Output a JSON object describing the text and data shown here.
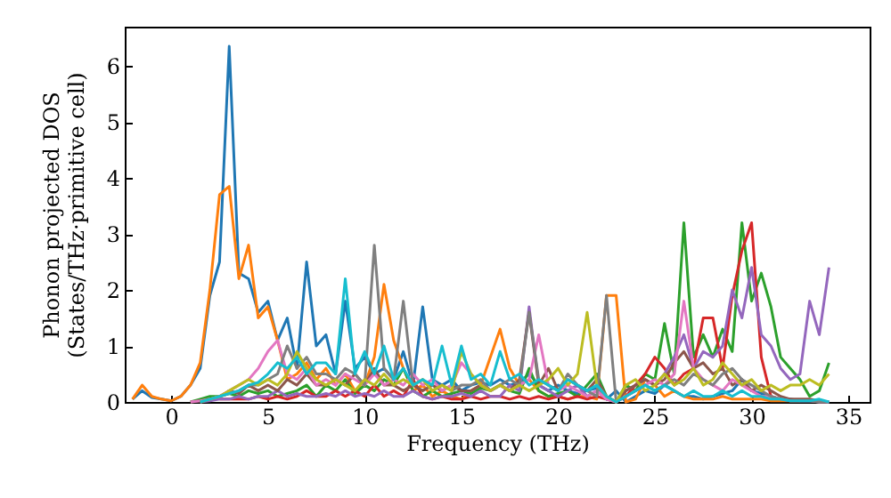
{
  "chart_data": {
    "type": "line",
    "xlabel": "Frequency (THz)",
    "ylabel": "Phonon projected DOS\n(States/THz·primitive cell)",
    "x": [
      -2,
      -1.5,
      -1,
      -0.5,
      0,
      0.5,
      1,
      1.5,
      2,
      2.5,
      3,
      3.5,
      4,
      4.5,
      5,
      5.5,
      6,
      6.5,
      7,
      7.5,
      8,
      8.5,
      9,
      9.5,
      10,
      10.5,
      11,
      11.5,
      12,
      12.5,
      13,
      13.5,
      14,
      14.5,
      15,
      15.5,
      16,
      16.5,
      17,
      17.5,
      18,
      18.5,
      19,
      19.5,
      20,
      20.5,
      21,
      21.5,
      22,
      22.5,
      23,
      23.5,
      24,
      24.5,
      25,
      25.5,
      26,
      26.5,
      27,
      27.5,
      28,
      28.5,
      29,
      29.5,
      30,
      30.5,
      31,
      31.5,
      32,
      32.5,
      33,
      33.5,
      34
    ],
    "xlim": [
      -2.4,
      36.1
    ],
    "xticks": [
      0,
      5,
      10,
      15,
      20,
      25,
      30,
      35
    ],
    "ylim": [
      0,
      6.7
    ],
    "yticks": [
      0,
      1,
      2,
      3,
      4,
      5,
      6
    ],
    "grid": false,
    "marker": "none",
    "line_style": "solid",
    "series": [
      {
        "color": "#1f77b4",
        "values": [
          0.05,
          0.2,
          0.08,
          0.05,
          0.02,
          0.1,
          0.3,
          0.6,
          1.9,
          2.5,
          6.35,
          2.3,
          2.2,
          1.6,
          1.8,
          1.1,
          1.5,
          0.6,
          2.5,
          1.0,
          1.2,
          0.5,
          1.8,
          0.6,
          0.8,
          0.5,
          0.6,
          0.4,
          0.9,
          0.3,
          1.7,
          0.4,
          0.3,
          0.4,
          0.2,
          0.3,
          0.35,
          0.3,
          0.4,
          0.3,
          0.35,
          0.5,
          0.3,
          0.2,
          0.3,
          0.2,
          0.15,
          0.2,
          0.25,
          0.05,
          0.2,
          0.0,
          0.1,
          0.2,
          0.15,
          0.3,
          0.2,
          0.1,
          0.1,
          0.05,
          0.1,
          0.15,
          0.2,
          0.4,
          0.2,
          0.15,
          0.1,
          0.05,
          0.05,
          0.02,
          0.02,
          0.02,
          0.0
        ]
      },
      {
        "color": "#ff7f0e",
        "values": [
          0.05,
          0.3,
          0.1,
          0.05,
          0.02,
          0.1,
          0.3,
          0.7,
          2.0,
          3.7,
          3.85,
          2.2,
          2.8,
          1.5,
          1.7,
          1.1,
          0.4,
          0.5,
          0.7,
          0.4,
          0.6,
          0.3,
          0.5,
          0.2,
          0.3,
          0.8,
          2.1,
          1.1,
          0.6,
          0.2,
          0.3,
          0.1,
          0.2,
          0.1,
          0.05,
          0.2,
          0.3,
          0.8,
          1.3,
          0.6,
          0.3,
          0.4,
          0.2,
          0.1,
          0.1,
          0.05,
          0.1,
          0.1,
          0.05,
          1.9,
          1.9,
          0.0,
          0.05,
          0.4,
          0.3,
          0.1,
          0.2,
          0.1,
          0.05,
          0.05,
          0.05,
          0.1,
          0.05,
          0.05,
          0.05,
          0.05,
          0.02,
          0.02,
          0.02,
          0.02,
          null,
          null,
          null
        ]
      },
      {
        "color": "#2ca02c",
        "values": [
          null,
          null,
          null,
          null,
          null,
          null,
          0,
          0.05,
          0.1,
          0.1,
          0.15,
          0.1,
          0.2,
          0.15,
          0.2,
          0.1,
          0.15,
          0.2,
          0.3,
          0.1,
          0.3,
          0.2,
          0.4,
          0.15,
          0.3,
          0.2,
          0.4,
          0.3,
          0.6,
          0.2,
          0.1,
          0.2,
          0.1,
          0.15,
          0.2,
          0.15,
          0.25,
          0.2,
          0.3,
          0.2,
          0.15,
          0.6,
          0.2,
          0.1,
          0.15,
          0.2,
          0.1,
          0.3,
          0.5,
          0.1,
          0.0,
          0.3,
          0.2,
          0.5,
          0.4,
          1.4,
          0.5,
          3.2,
          0.8,
          1.2,
          0.8,
          1.3,
          0.9,
          3.2,
          1.8,
          2.3,
          1.7,
          0.8,
          0.6,
          0.4,
          0.1,
          0.2,
          0.7
        ]
      },
      {
        "color": "#d62728",
        "values": [
          null,
          null,
          null,
          null,
          null,
          null,
          null,
          null,
          null,
          0.05,
          0.05,
          0.05,
          0.05,
          0.1,
          0.05,
          0.1,
          0.05,
          0.1,
          0.2,
          0.1,
          0.1,
          0.2,
          0.1,
          0.2,
          0.1,
          0.3,
          0.1,
          0.2,
          0.1,
          0.4,
          0.1,
          0.05,
          0.1,
          0.05,
          0.05,
          0.1,
          0.05,
          0.1,
          0.1,
          0.05,
          0.1,
          0.05,
          0.1,
          0.05,
          0.1,
          0.05,
          0.1,
          0.05,
          0.1,
          0.05,
          0.0,
          0.1,
          0.3,
          0.5,
          0.8,
          0.6,
          0.3,
          0.5,
          0.6,
          1.5,
          1.5,
          0.6,
          1.9,
          2.7,
          3.2,
          0.8,
          0.1,
          0.05,
          null,
          null,
          null,
          null,
          null
        ]
      },
      {
        "color": "#9467bd",
        "values": [
          null,
          null,
          null,
          null,
          null,
          null,
          null,
          0,
          0.02,
          0.05,
          0.05,
          0.1,
          0.05,
          0.1,
          0.1,
          0.2,
          0.1,
          0.15,
          0.1,
          0.1,
          0.15,
          0.1,
          0.2,
          0.1,
          0.15,
          0.1,
          0.2,
          0.1,
          0.1,
          0.2,
          0.1,
          0.05,
          0.1,
          0.1,
          0.15,
          0.1,
          0.2,
          0.1,
          0.1,
          0.3,
          0.2,
          1.7,
          0.3,
          0.2,
          0.1,
          0.2,
          0.3,
          0.1,
          0.2,
          0.05,
          0.0,
          0.2,
          0.3,
          0.4,
          0.3,
          0.5,
          0.8,
          1.2,
          0.6,
          0.9,
          0.8,
          1.0,
          2.0,
          1.5,
          2.4,
          1.2,
          1.0,
          0.6,
          0.4,
          0.5,
          1.8,
          1.2,
          2.4
        ]
      },
      {
        "color": "#8c564b",
        "values": [
          null,
          null,
          null,
          null,
          null,
          null,
          0,
          0.02,
          0.05,
          0.1,
          0.2,
          0.15,
          0.3,
          0.2,
          0.3,
          0.2,
          0.4,
          0.3,
          0.5,
          0.3,
          0.3,
          0.4,
          0.3,
          0.5,
          0.3,
          0.6,
          0.3,
          0.3,
          0.2,
          0.3,
          0.2,
          0.3,
          0.2,
          0.3,
          0.2,
          0.2,
          0.3,
          0.2,
          0.3,
          0.2,
          0.4,
          1.6,
          0.3,
          0.6,
          0.2,
          0.4,
          0.3,
          0.2,
          0.4,
          0.1,
          0.0,
          0.2,
          0.3,
          0.4,
          0.3,
          0.4,
          0.7,
          0.9,
          0.6,
          0.7,
          0.5,
          0.6,
          0.3,
          0.4,
          0.2,
          0.3,
          0.2,
          0.1,
          0.05,
          0.05,
          0.05,
          0.02,
          0.0
        ]
      },
      {
        "color": "#e377c2",
        "values": [
          null,
          null,
          null,
          null,
          null,
          null,
          0,
          0.02,
          0.05,
          0.1,
          0.2,
          0.3,
          0.4,
          0.6,
          0.9,
          1.1,
          0.5,
          0.4,
          0.6,
          0.3,
          0.4,
          0.3,
          0.5,
          0.4,
          0.3,
          0.5,
          0.3,
          0.4,
          0.3,
          0.5,
          0.3,
          0.4,
          0.2,
          0.3,
          0.7,
          0.5,
          0.3,
          0.2,
          0.3,
          0.2,
          0.3,
          0.4,
          1.2,
          0.3,
          0.2,
          0.3,
          0.2,
          0.1,
          0.2,
          0.05,
          0.0,
          0.1,
          0.2,
          0.3,
          0.4,
          0.3,
          0.5,
          1.8,
          0.6,
          0.4,
          0.3,
          0.2,
          0.4,
          0.3,
          0.2,
          0.1,
          0.1,
          0.05,
          0.02,
          0.02,
          0.02,
          0.0,
          0.0
        ]
      },
      {
        "color": "#7f7f7f",
        "values": [
          null,
          null,
          null,
          null,
          null,
          null,
          null,
          0,
          0.05,
          0.1,
          0.15,
          0.2,
          0.3,
          0.3,
          0.4,
          0.5,
          1.0,
          0.6,
          0.8,
          0.5,
          0.5,
          0.4,
          0.6,
          0.5,
          0.3,
          2.8,
          0.6,
          0.4,
          1.8,
          0.3,
          0.4,
          0.2,
          0.3,
          0.2,
          0.3,
          0.3,
          0.4,
          0.2,
          0.3,
          0.4,
          0.3,
          1.6,
          0.4,
          0.3,
          0.2,
          0.5,
          0.3,
          0.2,
          0.1,
          1.9,
          0.0,
          0.1,
          0.2,
          0.3,
          0.2,
          0.3,
          0.4,
          0.3,
          0.5,
          0.4,
          0.3,
          0.5,
          0.6,
          0.4,
          0.3,
          0.2,
          0.1,
          0.05,
          0.02,
          0.02,
          0.02,
          0.0,
          0.0
        ]
      },
      {
        "color": "#bcbd22",
        "values": [
          null,
          null,
          null,
          null,
          null,
          null,
          null,
          0,
          0.05,
          0.1,
          0.2,
          0.3,
          0.4,
          0.3,
          0.4,
          0.3,
          0.5,
          0.9,
          0.6,
          0.4,
          0.3,
          0.4,
          0.3,
          0.2,
          0.4,
          0.3,
          0.5,
          0.3,
          0.4,
          0.3,
          0.4,
          0.2,
          0.3,
          0.2,
          0.9,
          0.5,
          0.3,
          0.2,
          0.3,
          0.2,
          0.3,
          0.2,
          0.3,
          0.4,
          0.6,
          0.3,
          0.5,
          1.6,
          0.3,
          0.1,
          0.0,
          0.3,
          0.4,
          0.2,
          0.3,
          0.5,
          0.3,
          0.4,
          0.6,
          0.3,
          0.4,
          0.7,
          0.5,
          0.3,
          0.4,
          0.2,
          0.3,
          0.2,
          0.3,
          0.3,
          0.4,
          0.3,
          0.5
        ]
      },
      {
        "color": "#17becf",
        "values": [
          null,
          null,
          null,
          null,
          null,
          null,
          null,
          0,
          0.05,
          0.1,
          0.15,
          0.2,
          0.3,
          0.35,
          0.5,
          0.7,
          0.6,
          0.8,
          0.5,
          0.7,
          0.7,
          0.5,
          2.2,
          0.5,
          0.9,
          0.5,
          1.0,
          0.4,
          0.6,
          0.3,
          0.4,
          0.3,
          1.0,
          0.3,
          1.0,
          0.4,
          0.5,
          0.3,
          0.9,
          0.4,
          0.5,
          0.3,
          0.4,
          0.3,
          0.2,
          0.4,
          0.3,
          0.2,
          0.3,
          0.1,
          0.0,
          0.1,
          0.2,
          0.3,
          0.2,
          0.3,
          0.2,
          0.1,
          0.2,
          0.1,
          0.1,
          0.2,
          0.1,
          0.2,
          0.1,
          0.1,
          0.05,
          0.05,
          0.02,
          0.02,
          0.02,
          0.05,
          0.0
        ]
      }
    ]
  }
}
